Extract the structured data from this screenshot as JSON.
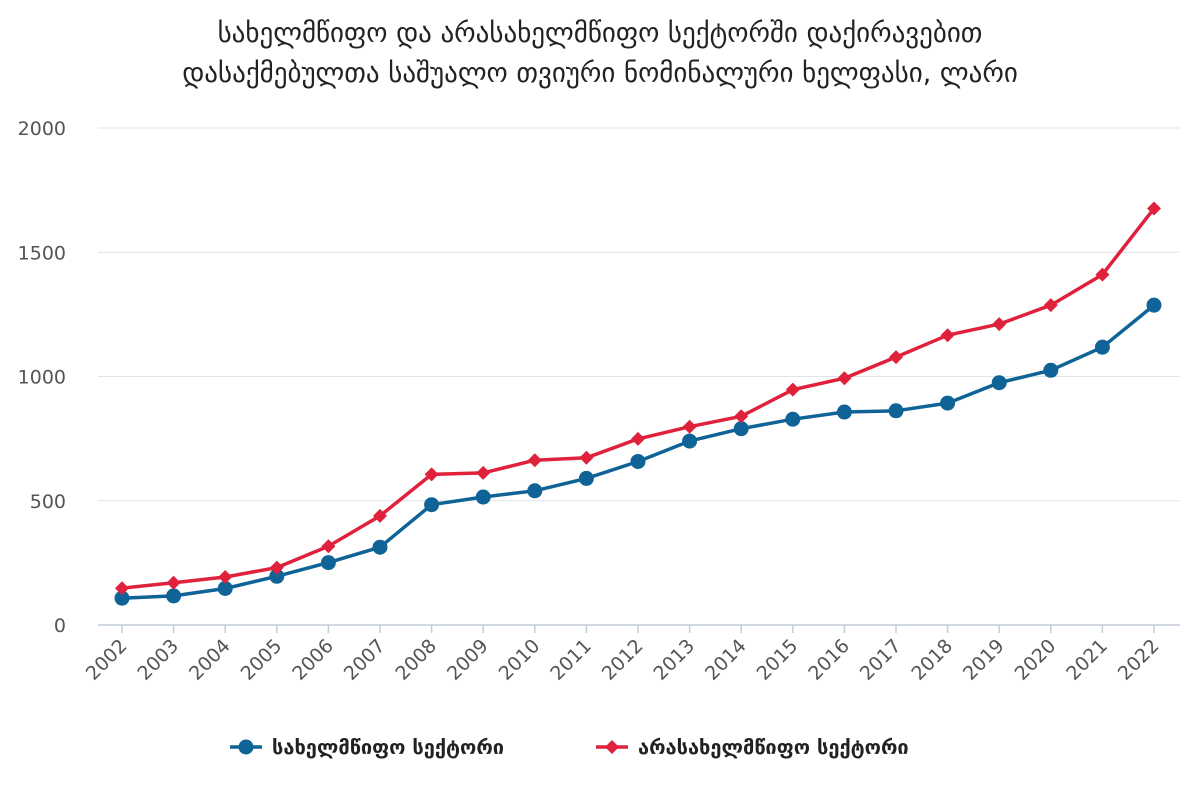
{
  "chart_data": {
    "type": "line",
    "title_lines": [
      "სახელმწიფო და არასახელმწიფო სექტორში დაქირავებით",
      "დასაქმებულთა საშუალო თვიური ნომინალური ხელფასი, ლარი"
    ],
    "x": [
      "2002",
      "2003",
      "2004",
      "2005",
      "2006",
      "2007",
      "2008",
      "2009",
      "2010",
      "2011",
      "2012",
      "2013",
      "2014",
      "2015",
      "2016",
      "2017",
      "2018",
      "2019",
      "2020",
      "2021",
      "2022"
    ],
    "ylim": [
      0,
      2000
    ],
    "yticks": [
      0,
      500,
      1000,
      1500,
      2000
    ],
    "grid": true,
    "legend_position": "bottom-center",
    "series": [
      {
        "name": "სახელმწიფო სექტორი",
        "color": "#0f6396",
        "marker": "circle",
        "values": [
          108,
          117,
          147,
          196,
          251,
          313,
          484,
          515,
          540,
          590,
          658,
          740,
          790,
          828,
          857,
          862,
          893,
          975,
          1025,
          1118,
          1287
        ]
      },
      {
        "name": "არასახელმწიფო სექტორი",
        "color": "#e0213b",
        "marker": "diamond",
        "values": [
          148,
          170,
          193,
          231,
          317,
          439,
          606,
          612,
          663,
          673,
          749,
          798,
          840,
          947,
          993,
          1078,
          1166,
          1211,
          1287,
          1410,
          1676
        ]
      }
    ]
  }
}
